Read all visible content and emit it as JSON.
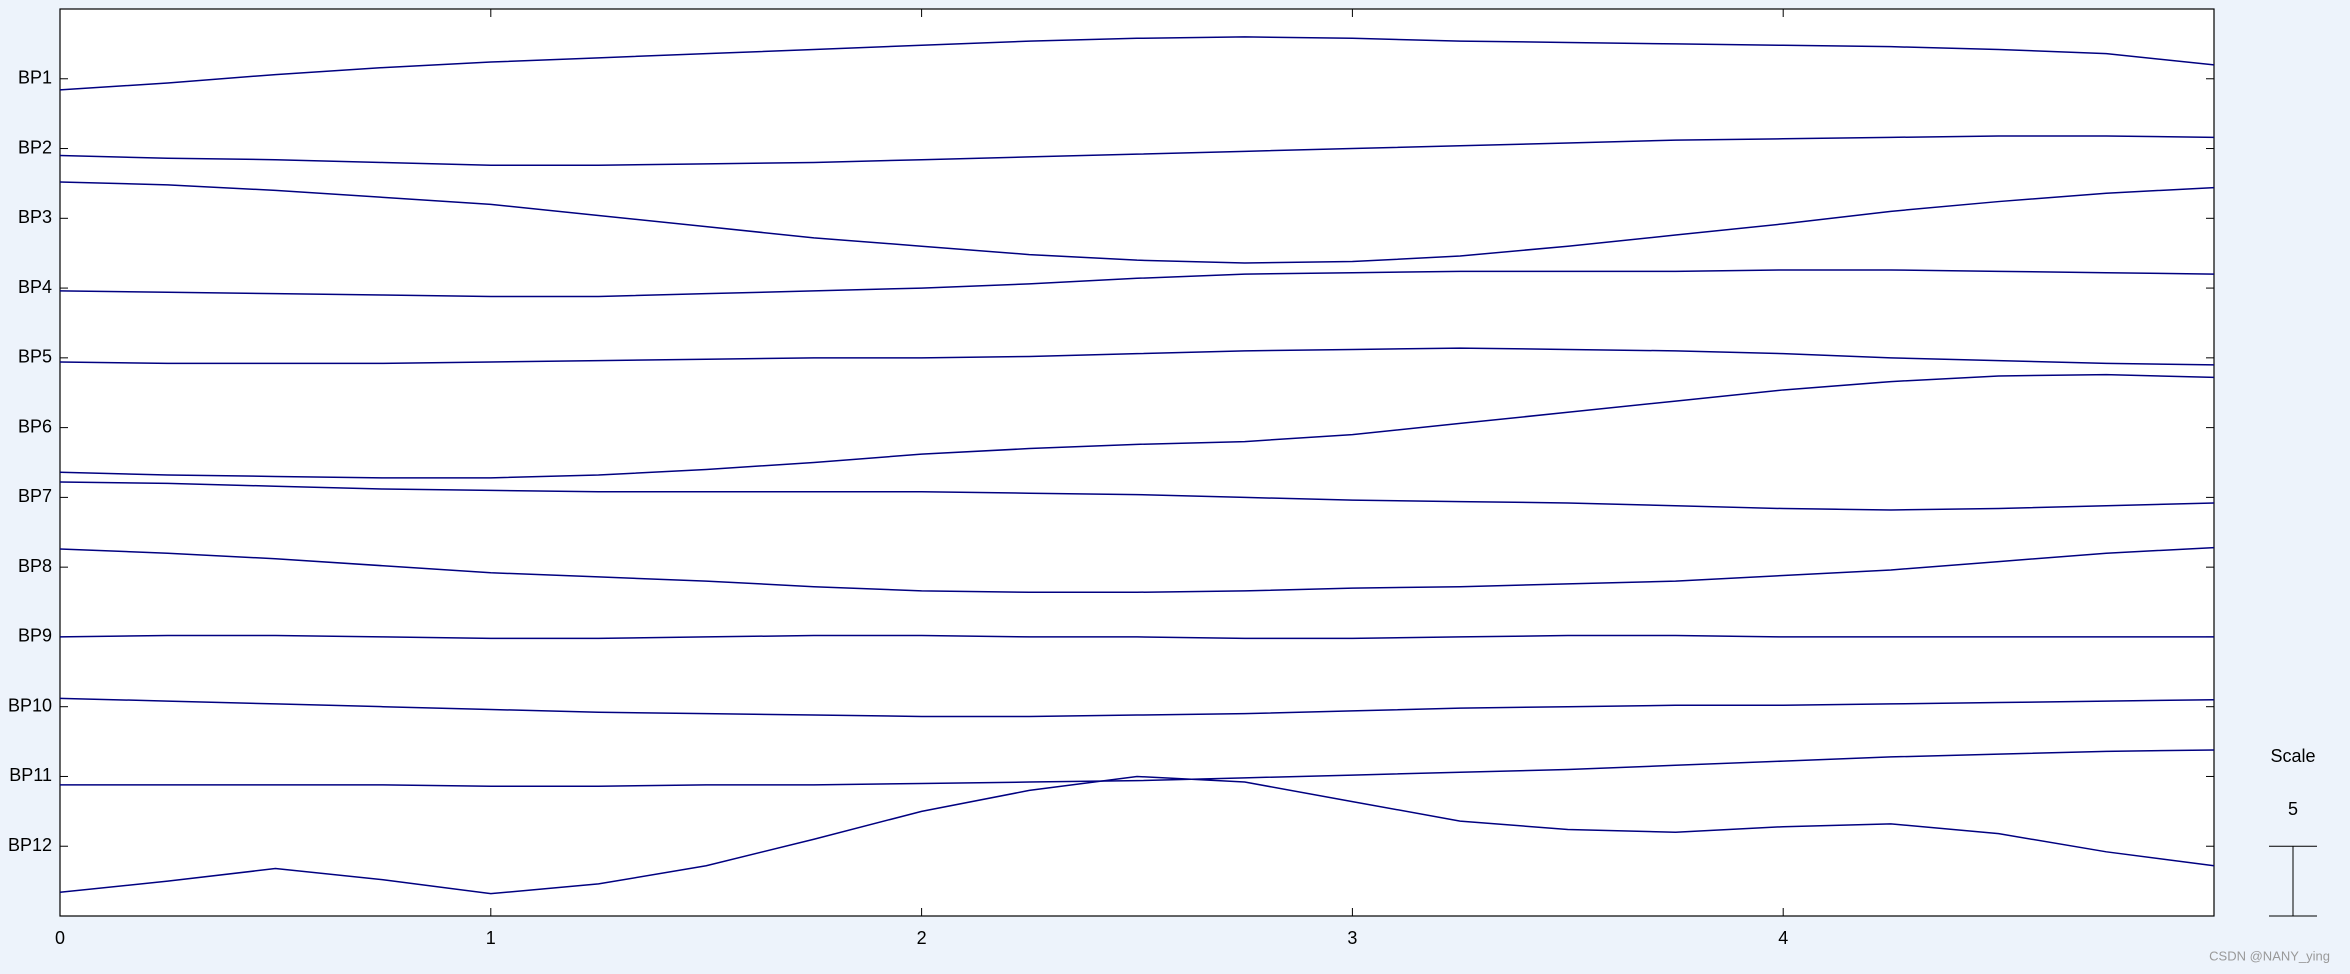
{
  "chart_data": {
    "type": "line",
    "x": [
      0,
      0.25,
      0.5,
      0.75,
      1,
      1.25,
      1.5,
      1.75,
      2,
      2.25,
      2.5,
      2.75,
      3,
      3.25,
      3.5,
      3.75,
      4,
      4.25,
      4.5,
      4.75,
      5
    ],
    "series": [
      {
        "name": "BP1",
        "color": "#000080",
        "values": [
          59.2,
          59.7,
          60.3,
          60.8,
          61.2,
          61.5,
          61.8,
          62.1,
          62.4,
          62.7,
          62.9,
          63.0,
          62.9,
          62.7,
          62.6,
          62.5,
          62.4,
          62.3,
          62.1,
          61.8,
          61.0
        ]
      },
      {
        "name": "BP2",
        "color": "#000080",
        "values": [
          54.5,
          54.3,
          54.2,
          54.0,
          53.8,
          53.8,
          53.9,
          54.0,
          54.2,
          54.4,
          54.6,
          54.8,
          55.0,
          55.2,
          55.4,
          55.6,
          55.7,
          55.8,
          55.9,
          55.9,
          55.8
        ]
      },
      {
        "name": "BP3",
        "color": "#000080",
        "values": [
          52.6,
          52.4,
          52.0,
          51.5,
          51.0,
          50.2,
          49.4,
          48.6,
          48.0,
          47.4,
          47.0,
          46.8,
          46.9,
          47.3,
          48.0,
          48.8,
          49.6,
          50.5,
          51.2,
          51.8,
          52.2
        ]
      },
      {
        "name": "BP4",
        "color": "#000080",
        "values": [
          44.8,
          44.7,
          44.6,
          44.5,
          44.4,
          44.4,
          44.6,
          44.8,
          45.0,
          45.3,
          45.7,
          46.0,
          46.1,
          46.2,
          46.2,
          46.2,
          46.3,
          46.3,
          46.2,
          46.1,
          46.0
        ]
      },
      {
        "name": "BP5",
        "color": "#000080",
        "values": [
          39.7,
          39.6,
          39.6,
          39.6,
          39.7,
          39.8,
          39.9,
          40.0,
          40.0,
          40.1,
          40.3,
          40.5,
          40.6,
          40.7,
          40.6,
          40.5,
          40.3,
          40.0,
          39.8,
          39.6,
          39.5
        ]
      },
      {
        "name": "BP6",
        "color": "#000080",
        "values": [
          31.8,
          31.6,
          31.5,
          31.4,
          31.4,
          31.6,
          32.0,
          32.5,
          33.1,
          33.5,
          33.8,
          34.0,
          34.5,
          35.3,
          36.1,
          36.9,
          37.7,
          38.3,
          38.7,
          38.8,
          38.6
        ]
      },
      {
        "name": "BP7",
        "color": "#000080",
        "values": [
          31.1,
          31.0,
          30.8,
          30.6,
          30.5,
          30.4,
          30.4,
          30.4,
          30.4,
          30.3,
          30.2,
          30.0,
          29.8,
          29.7,
          29.6,
          29.4,
          29.2,
          29.1,
          29.2,
          29.4,
          29.6
        ]
      },
      {
        "name": "BP8",
        "color": "#000080",
        "values": [
          26.3,
          26.0,
          25.6,
          25.1,
          24.6,
          24.3,
          24.0,
          23.6,
          23.3,
          23.2,
          23.2,
          23.3,
          23.5,
          23.6,
          23.8,
          24.0,
          24.4,
          24.8,
          25.4,
          26.0,
          26.4
        ]
      },
      {
        "name": "BP9",
        "color": "#000080",
        "values": [
          20.0,
          20.1,
          20.1,
          20.0,
          19.9,
          19.9,
          20.0,
          20.1,
          20.1,
          20.0,
          20.0,
          19.9,
          19.9,
          20.0,
          20.1,
          20.1,
          20.0,
          20.0,
          20.0,
          20.0,
          20.0
        ]
      },
      {
        "name": "BP10",
        "color": "#000080",
        "values": [
          15.6,
          15.4,
          15.2,
          15.0,
          14.8,
          14.6,
          14.5,
          14.4,
          14.3,
          14.3,
          14.4,
          14.5,
          14.7,
          14.9,
          15.0,
          15.1,
          15.1,
          15.2,
          15.3,
          15.4,
          15.5
        ]
      },
      {
        "name": "BP11",
        "color": "#000080",
        "values": [
          9.4,
          9.4,
          9.4,
          9.4,
          9.3,
          9.3,
          9.4,
          9.4,
          9.5,
          9.6,
          9.7,
          9.9,
          10.1,
          10.3,
          10.5,
          10.8,
          11.1,
          11.4,
          11.6,
          11.8,
          11.9
        ]
      },
      {
        "name": "BP12",
        "color": "#000080",
        "values": [
          1.7,
          2.5,
          3.4,
          2.6,
          1.6,
          2.3,
          3.6,
          5.5,
          7.5,
          9.0,
          10.0,
          9.6,
          8.2,
          6.8,
          6.2,
          6.0,
          6.4,
          6.6,
          5.9,
          4.6,
          3.6
        ]
      }
    ],
    "xlim": [
      0,
      5
    ],
    "xticks": [
      0,
      1,
      2,
      3,
      4
    ],
    "ylim": [
      0,
      65
    ],
    "yticks": [
      {
        "value": 60,
        "label": "BP1"
      },
      {
        "value": 55,
        "label": "BP2"
      },
      {
        "value": 50,
        "label": "BP3"
      },
      {
        "value": 45,
        "label": "BP4"
      },
      {
        "value": 40,
        "label": "BP5"
      },
      {
        "value": 35,
        "label": "BP6"
      },
      {
        "value": 30,
        "label": "BP7"
      },
      {
        "value": 25,
        "label": "BP8"
      },
      {
        "value": 20,
        "label": "BP9"
      },
      {
        "value": 15,
        "label": "BP10"
      },
      {
        "value": 10,
        "label": "BP11"
      },
      {
        "value": 5,
        "label": "BP12"
      }
    ],
    "grid": false,
    "scale_bar": {
      "label": "Scale",
      "value": 5
    }
  },
  "watermark": "CSDN @NANY_ying"
}
